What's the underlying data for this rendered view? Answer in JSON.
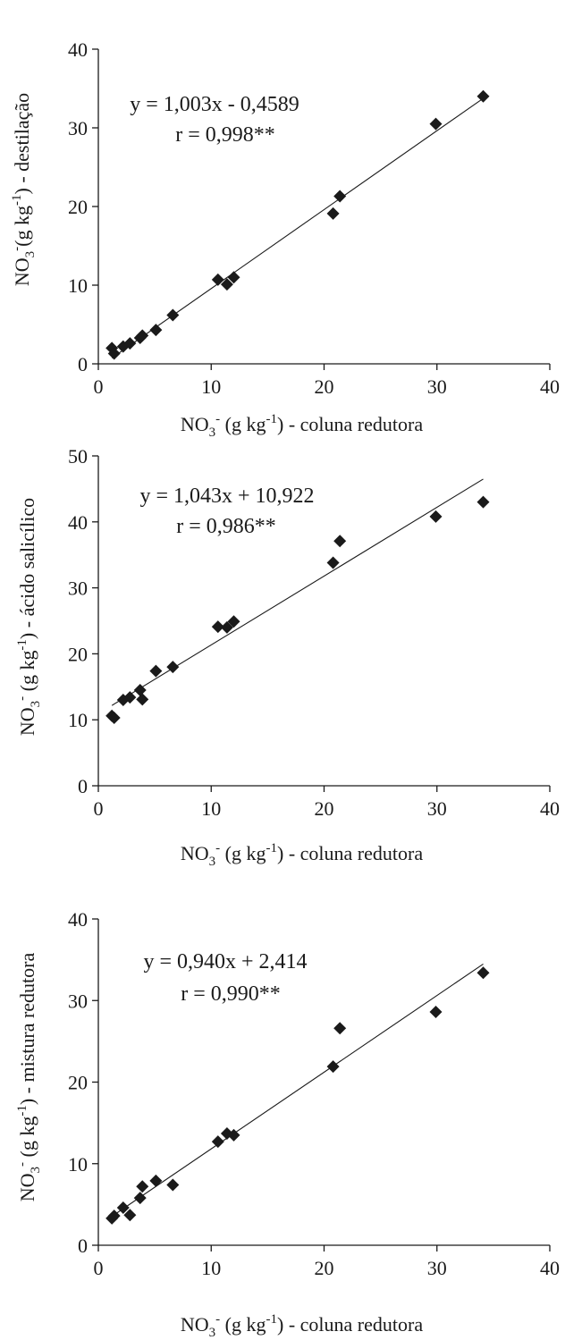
{
  "chart_data": [
    {
      "type": "scatter",
      "xlabel": {
        "base": "NO",
        "sub": "3",
        "sup": "-",
        "rest": " (g kg",
        "exp": "-1",
        "tail": ") - coluna redutora"
      },
      "ylabel": {
        "base": "NO",
        "sub": "3",
        "sup": "-",
        "rest": "(g kg",
        "exp": "-1",
        "tail": ") - destilação"
      },
      "xlim": [
        0,
        40
      ],
      "ylim": [
        0,
        40
      ],
      "xticks": [
        "0",
        "10",
        "20",
        "30",
        "40"
      ],
      "yticks": [
        "0",
        "10",
        "20",
        "30",
        "40"
      ],
      "equation": "y = 1,003x - 0,4589",
      "r_text": "r = 0,998**",
      "fit": {
        "slope": 1.003,
        "intercept": -0.4589
      },
      "x": [
        1.2,
        1.4,
        2.2,
        2.8,
        3.7,
        3.9,
        5.1,
        6.6,
        10.6,
        11.4,
        12.0,
        20.8,
        21.4,
        29.9,
        34.1
      ],
      "y": [
        2.0,
        1.3,
        2.2,
        2.6,
        3.3,
        3.6,
        4.3,
        6.2,
        10.7,
        10.1,
        11.0,
        19.1,
        21.3,
        30.5,
        34.0
      ]
    },
    {
      "type": "scatter",
      "xlabel": {
        "base": "NO",
        "sub": "3",
        "sup": "-",
        "rest": " (g kg",
        "exp": "-1",
        "tail": ") - coluna redutora"
      },
      "ylabel": {
        "base": "NO",
        "sub": "3",
        "sup": "-",
        "rest": " (g kg",
        "exp": "-1",
        "tail": ") - ácido salicílico"
      },
      "xlim": [
        0,
        40
      ],
      "ylim": [
        0,
        50
      ],
      "xticks": [
        "0",
        "10",
        "20",
        "30",
        "40"
      ],
      "yticks": [
        "0",
        "10",
        "20",
        "30",
        "40",
        "50"
      ],
      "equation": "y = 1,043x + 10,922",
      "r_text": "r = 0,986**",
      "fit": {
        "slope": 1.043,
        "intercept": 10.922
      },
      "x": [
        1.2,
        1.4,
        2.2,
        2.8,
        3.7,
        3.9,
        5.1,
        6.6,
        10.6,
        11.4,
        12.0,
        20.8,
        21.4,
        29.9,
        34.1
      ],
      "y": [
        10.6,
        10.3,
        13.0,
        13.4,
        14.5,
        13.1,
        17.4,
        18.0,
        24.1,
        24.0,
        24.9,
        33.8,
        37.1,
        40.8,
        43.0
      ]
    },
    {
      "type": "scatter",
      "xlabel": {
        "base": "NO",
        "sub": "3",
        "sup": "-",
        "rest": " (g kg",
        "exp": "-1",
        "tail": ") - coluna redutora"
      },
      "ylabel": {
        "base": "NO",
        "sub": "3",
        "sup": "-",
        "rest": " (g kg",
        "exp": "-1",
        "tail": ") - mistura redutora"
      },
      "xlim": [
        0,
        40
      ],
      "ylim": [
        0,
        40
      ],
      "xticks": [
        "0",
        "10",
        "20",
        "30",
        "40"
      ],
      "yticks": [
        "0",
        "10",
        "20",
        "30",
        "40"
      ],
      "equation": "y = 0,940x + 2,414",
      "r_text": "r = 0,990**",
      "fit": {
        "slope": 0.94,
        "intercept": 2.414
      },
      "x": [
        1.2,
        1.4,
        2.2,
        2.8,
        3.7,
        3.9,
        5.1,
        6.6,
        10.6,
        11.4,
        12.0,
        20.8,
        21.4,
        29.9,
        34.1
      ],
      "y": [
        3.3,
        3.6,
        4.6,
        3.7,
        5.8,
        7.2,
        7.9,
        7.4,
        12.7,
        13.7,
        13.5,
        21.9,
        26.6,
        28.6,
        33.4
      ]
    }
  ]
}
